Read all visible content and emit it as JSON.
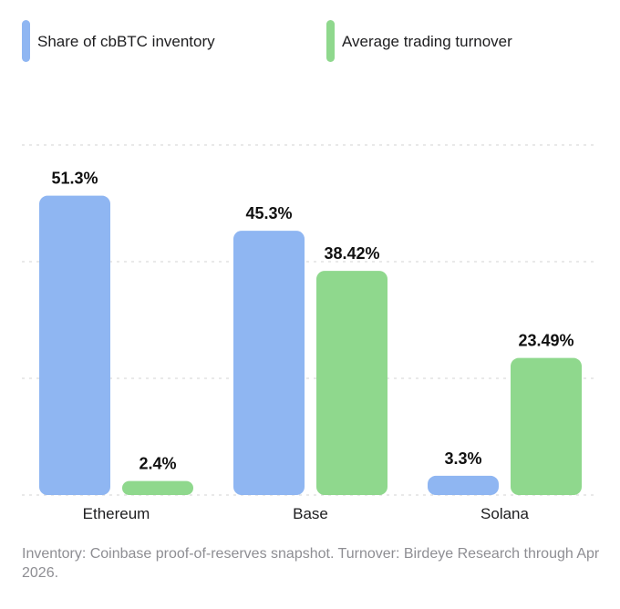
{
  "chart_data": {
    "type": "bar",
    "categories": [
      "Ethereum",
      "Base",
      "Solana"
    ],
    "series": [
      {
        "name": "Share of cbBTC inventory",
        "values": [
          51.3,
          45.3,
          3.3
        ],
        "labels": [
          "51.3%",
          "45.3%",
          "3.3%"
        ],
        "color": "#8fb6f2"
      },
      {
        "name": "Average trading turnover",
        "values": [
          2.4,
          38.42,
          23.49
        ],
        "labels": [
          "2.4%",
          "38.42%",
          "23.49%"
        ],
        "color": "#8fd88d"
      }
    ],
    "ylim": [
      0,
      60
    ],
    "grid": true,
    "legend_position": "top-left",
    "title": "",
    "xlabel": "",
    "ylabel": ""
  },
  "footnote": "Inventory: Coinbase proof-of-reserves snapshot. Turnover: Birdeye Research through Apr 2026."
}
